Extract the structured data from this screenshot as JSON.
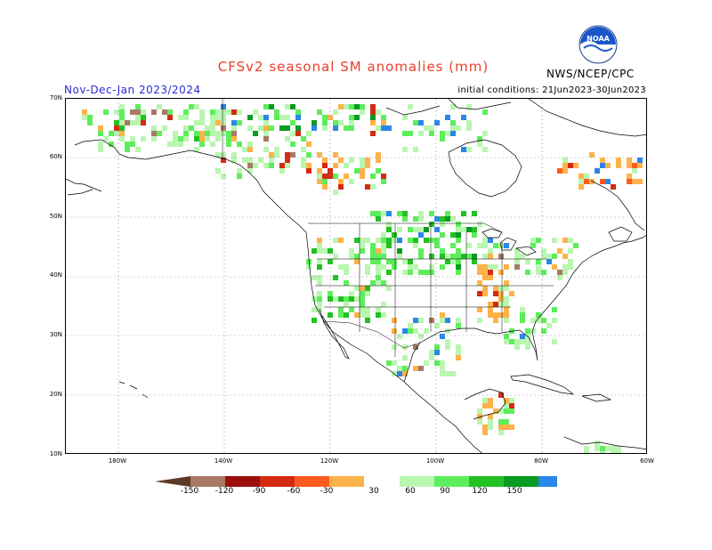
{
  "title": "CFSv2 seasonal SM anomalies (mm)",
  "subtitle_left": "Nov-Dec-Jan 2023/2024",
  "subtitle_right": "initial conditions: 21Jun2023-30Jun2023",
  "agency": "NWS/NCEP/CPC",
  "logo_text": "NOAA",
  "lat_labels": [
    "70N",
    "60N",
    "50N",
    "40N",
    "30N",
    "20N",
    "10N"
  ],
  "lon_labels": [
    "180W",
    "140W",
    "120W",
    "100W",
    "80W",
    "60W"
  ],
  "colorbar": {
    "ticks": [
      "-150",
      "-120",
      "-90",
      "-60",
      "-30",
      "30",
      "60",
      "90",
      "120",
      "150"
    ],
    "colors": [
      "#5c3a25",
      "#a77a65",
      "#9e0e0e",
      "#d42a12",
      "#ff5a1e",
      "#fdb34a",
      "#ffffff",
      "#b9f6b0",
      "#5eed5c",
      "#22c122",
      "#0a9b22",
      "#2a86e8",
      "#3a5ee8"
    ]
  },
  "colors": {
    "title": "#e8402a",
    "subtitle_left": "#2a2ad8",
    "grid": "#888888",
    "coast": "#000000"
  }
}
